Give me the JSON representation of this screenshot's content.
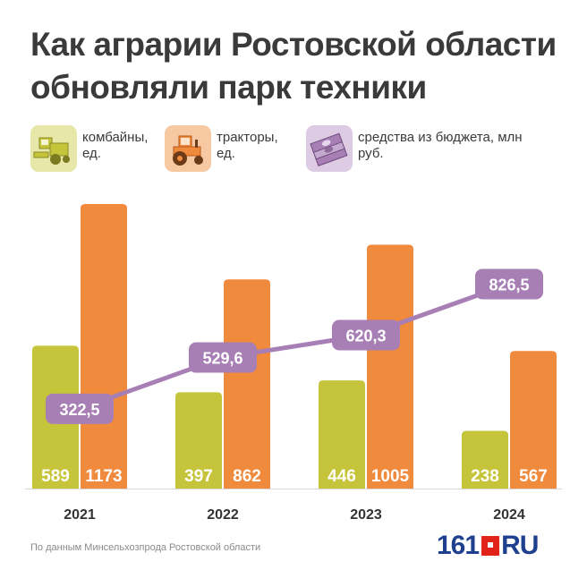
{
  "title": "Как аграрии Ростовской области обновляли парк техники",
  "legend": [
    {
      "label": "комбайны, ед.",
      "icon": "combine-harvester-icon",
      "color": "#c5c43b"
    },
    {
      "label": "тракторы, ед.",
      "icon": "tractor-icon",
      "color": "#f08a3c"
    },
    {
      "label": "средства из бюджета, млн руб.",
      "icon": "money-stack-icon",
      "color": "#a87fb5"
    }
  ],
  "chart_data": {
    "type": "bar",
    "categories": [
      "2021",
      "2022",
      "2023",
      "2024"
    ],
    "series": [
      {
        "name": "комбайны, ед.",
        "type": "bar",
        "values": [
          589,
          397,
          446,
          238
        ],
        "value_labels": [
          "589",
          "397",
          "446",
          "238"
        ],
        "color": "#c5c43b"
      },
      {
        "name": "тракторы, ед.",
        "type": "bar",
        "values": [
          1173,
          862,
          1005,
          567
        ],
        "value_labels": [
          "1173",
          "862",
          "1005",
          "567"
        ],
        "color": "#f08a3c"
      },
      {
        "name": "средства из бюджета, млн руб.",
        "type": "line",
        "values": [
          322.5,
          529.6,
          620.3,
          826.5
        ],
        "value_labels": [
          "322,5",
          "529,6",
          "620,3",
          "826,5"
        ],
        "color": "#a87fb5"
      }
    ],
    "bar_ylim": [
      0,
      1173
    ],
    "line_ylim": [
      0,
      1150
    ],
    "grid": false,
    "legend_position": "top"
  },
  "source": "По данным Минсельхозпрода Ростовской области",
  "logo": {
    "number": "161",
    "suffix": "RU"
  }
}
